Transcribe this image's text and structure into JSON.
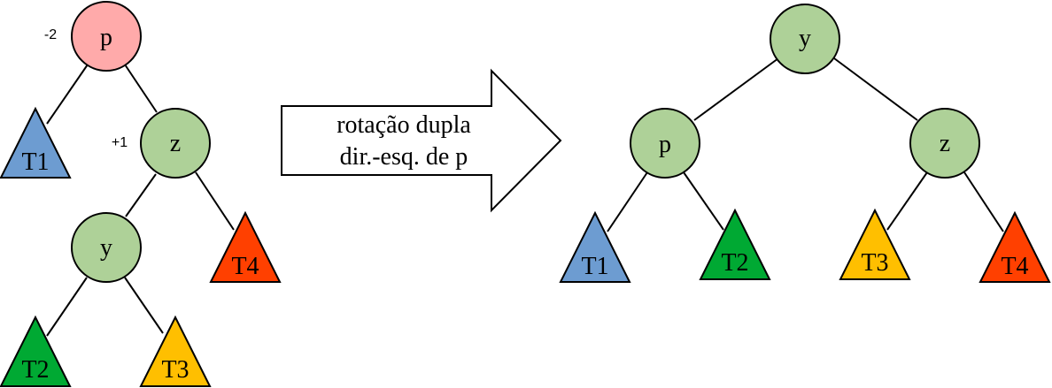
{
  "colors": {
    "unbalanced_node": "#ffaaaa",
    "node": "#aed198",
    "T1": "#6d9cd1",
    "T2": "#00a933",
    "T3": "#ffbf00",
    "T4": "#ff4000"
  },
  "before": {
    "nodes": {
      "p": "p",
      "z": "z",
      "y": "y"
    },
    "balance": {
      "p": "-2",
      "z": "+1"
    },
    "subtrees": {
      "T1": "T1",
      "T2": "T2",
      "T3": "T3",
      "T4": "T4"
    }
  },
  "arrow": {
    "line1": "rotação dupla",
    "line2": "dir.-esq. de p"
  },
  "after": {
    "nodes": {
      "y": "y",
      "p": "p",
      "z": "z"
    },
    "subtrees": {
      "T1": "T1",
      "T2": "T2",
      "T3": "T3",
      "T4": "T4"
    }
  }
}
